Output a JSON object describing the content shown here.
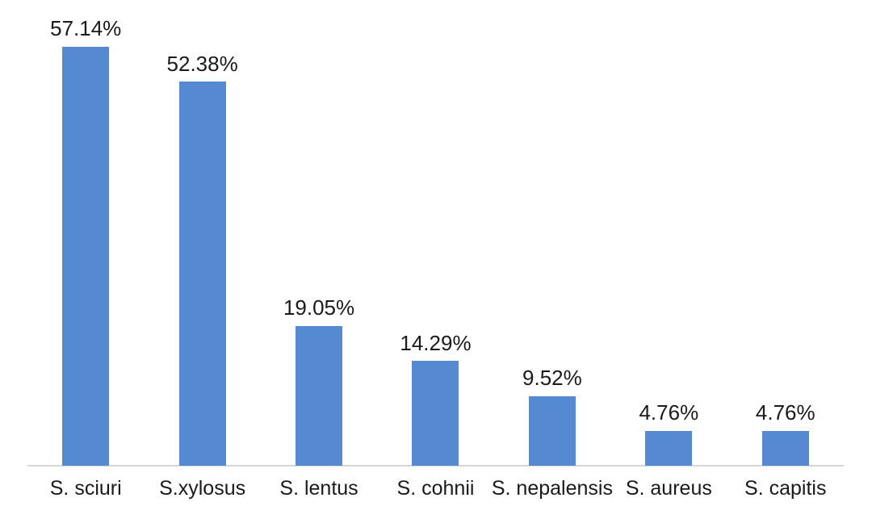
{
  "chart_data": {
    "type": "bar",
    "title": "",
    "xlabel": "",
    "ylabel": "",
    "categories": [
      "S. sciuri",
      "S.xylosus",
      "S. lentus",
      "S. cohnii",
      "S. nepalensis",
      "S. aureus",
      "S. capitis"
    ],
    "values": [
      57.14,
      52.38,
      19.05,
      14.29,
      9.52,
      4.76,
      4.76
    ],
    "value_labels": [
      "57.14%",
      "52.38%",
      "19.05%",
      "14.29%",
      "9.52%",
      "4.76%",
      "4.76%"
    ],
    "ylim": [
      0,
      60
    ],
    "grid": false,
    "legend": false,
    "bar_color": "#558AD3",
    "axis_line_color": "#D6D6D6",
    "label_color": "#1A1A1A",
    "background": "#FFFFFF"
  }
}
